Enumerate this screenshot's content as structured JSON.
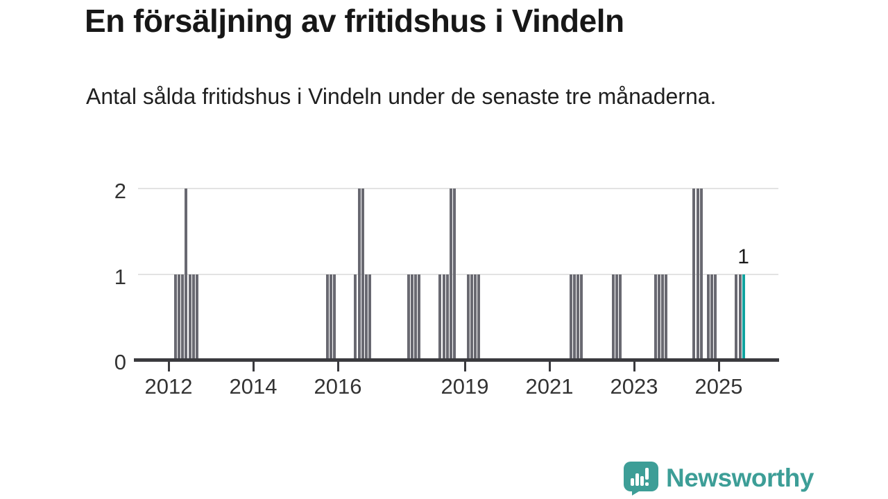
{
  "header": {
    "title": "En försäljning av fritidshus i Vindeln",
    "subtitle": "Antal sålda fritidshus i Vindeln under de senaste tre månaderna."
  },
  "chart_data": {
    "type": "bar",
    "title": "En försäljning av fritidshus i Vindeln",
    "subtitle": "Antal sålda fritidshus i Vindeln under de senaste tre månaderna.",
    "xlabel": "",
    "ylabel": "",
    "ylim": [
      0,
      2
    ],
    "yticks": [
      0,
      1,
      2
    ],
    "xticks": [
      2012,
      2014,
      2016,
      2019,
      2021,
      2023,
      2025
    ],
    "x_axis_year_range": [
      2011.3,
      2026.4
    ],
    "grid": "horizontal",
    "legend": "none",
    "annotation": {
      "text": "1",
      "month": "2025-08"
    },
    "highlight_month": "2025-08",
    "colors": {
      "bar": "#696971",
      "highlight": "#10a39f",
      "gridline": "#e3e3e3",
      "axis": "#3a3a3e",
      "tick_text": "#333333"
    },
    "months": [
      {
        "month": "2012-03",
        "value": 1
      },
      {
        "month": "2012-04",
        "value": 1
      },
      {
        "month": "2012-05",
        "value": 1
      },
      {
        "month": "2012-06",
        "value": 2
      },
      {
        "month": "2012-07",
        "value": 1
      },
      {
        "month": "2012-08",
        "value": 1
      },
      {
        "month": "2012-09",
        "value": 1
      },
      {
        "month": "2015-10",
        "value": 1
      },
      {
        "month": "2015-11",
        "value": 1
      },
      {
        "month": "2015-12",
        "value": 1
      },
      {
        "month": "2016-06",
        "value": 1
      },
      {
        "month": "2016-07",
        "value": 2
      },
      {
        "month": "2016-08",
        "value": 2
      },
      {
        "month": "2016-09",
        "value": 1
      },
      {
        "month": "2016-10",
        "value": 1
      },
      {
        "month": "2017-09",
        "value": 1
      },
      {
        "month": "2017-10",
        "value": 1
      },
      {
        "month": "2017-11",
        "value": 1
      },
      {
        "month": "2017-12",
        "value": 1
      },
      {
        "month": "2018-06",
        "value": 1
      },
      {
        "month": "2018-07",
        "value": 1
      },
      {
        "month": "2018-08",
        "value": 1
      },
      {
        "month": "2018-09",
        "value": 2
      },
      {
        "month": "2018-10",
        "value": 2
      },
      {
        "month": "2019-02",
        "value": 1
      },
      {
        "month": "2019-03",
        "value": 1
      },
      {
        "month": "2019-04",
        "value": 1
      },
      {
        "month": "2019-05",
        "value": 1
      },
      {
        "month": "2021-07",
        "value": 1
      },
      {
        "month": "2021-08",
        "value": 1
      },
      {
        "month": "2021-09",
        "value": 1
      },
      {
        "month": "2021-10",
        "value": 1
      },
      {
        "month": "2022-07",
        "value": 1
      },
      {
        "month": "2022-08",
        "value": 1
      },
      {
        "month": "2022-09",
        "value": 1
      },
      {
        "month": "2023-07",
        "value": 1
      },
      {
        "month": "2023-08",
        "value": 1
      },
      {
        "month": "2023-09",
        "value": 1
      },
      {
        "month": "2023-10",
        "value": 1
      },
      {
        "month": "2024-06",
        "value": 2
      },
      {
        "month": "2024-07",
        "value": 2
      },
      {
        "month": "2024-08",
        "value": 2
      },
      {
        "month": "2024-10",
        "value": 1
      },
      {
        "month": "2024-11",
        "value": 1
      },
      {
        "month": "2024-12",
        "value": 1
      },
      {
        "month": "2025-06",
        "value": 1
      },
      {
        "month": "2025-07",
        "value": 1
      },
      {
        "month": "2025-08",
        "value": 1
      }
    ]
  },
  "logo": {
    "text": "Newsworthy",
    "color": "#3d9e97",
    "icon": "newsworthy-speech-bubble-chart-icon"
  }
}
